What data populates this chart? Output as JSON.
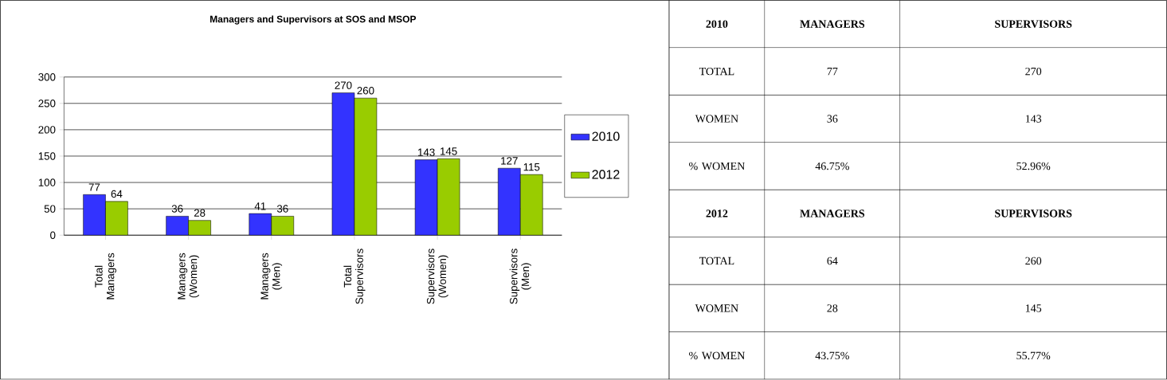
{
  "chart_data": [
    {
      "type": "bar",
      "title": "Managers and Supervisors at SOS and MSOP",
      "categories": [
        "Total Managers",
        "Managers (Women)",
        "Managers (Men)",
        "Total Supervisors",
        "Supervisors (Women)",
        "Supervisors (Men)"
      ],
      "series": [
        {
          "name": "2010",
          "color": "#3333ff",
          "values": [
            77,
            36,
            41,
            270,
            143,
            127
          ]
        },
        {
          "name": "2012",
          "color": "#99cc00",
          "values": [
            64,
            28,
            36,
            260,
            145,
            115
          ]
        }
      ],
      "ylim": [
        0,
        300
      ],
      "yticks": [
        0,
        50,
        100,
        150,
        200,
        250,
        300
      ],
      "grid": "y",
      "legend": "right",
      "data_labels": true
    },
    {
      "type": "other",
      "annotations": [
        "2010",
        "MANAGERS",
        "SUPERVISORS",
        "TOTAL",
        "77",
        "270",
        "WOMEN",
        "36",
        "143",
        "% WOMEN",
        "46.75%",
        "52.96%",
        "2012",
        "MANAGERS",
        "SUPERVISORS",
        "TOTAL",
        "64",
        "260",
        "WOMEN",
        "28",
        "145",
        "% WOMEN",
        "43.75%",
        "55.77%"
      ]
    }
  ]
}
